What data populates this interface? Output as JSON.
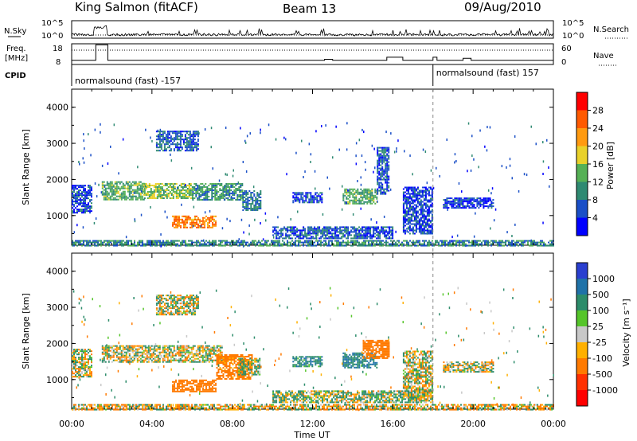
{
  "header": {
    "station": "King Salmon (fitACF)",
    "beam": "Beam 13",
    "date": "09/Aug/2010"
  },
  "strip": {
    "nsky_label": "N.Sky",
    "nsearch_label": "N.Search",
    "freq_label_1": "Freq.",
    "freq_label_2": "[MHz]",
    "nave_label": "Nave",
    "cpid_label": "CPID",
    "noise_left_ticks": [
      "10^5",
      "10^0"
    ],
    "noise_right_ticks": [
      "10^5",
      "10^0"
    ],
    "freq_left_ticks": [
      "18",
      "8"
    ],
    "freq_right_ticks": [
      "60",
      "0"
    ],
    "cpid_segments": [
      {
        "label": "normalsound (fast) -157",
        "start_hour": 0
      },
      {
        "label": "normalsound (fast) 157",
        "start_hour": 18
      }
    ]
  },
  "axes": {
    "xlabel": "Time UT",
    "ylabel": "Slant Range [km]",
    "x_tick_labels": [
      "00:00",
      "04:00",
      "08:00",
      "12:00",
      "16:00",
      "20:00",
      "00:00"
    ],
    "y_tick_labels": [
      "1000",
      "2000",
      "3000",
      "4000"
    ]
  },
  "power_bar": {
    "label": "Power [dB]",
    "tick_labels": [
      "4",
      "8",
      "12",
      "16",
      "20",
      "24",
      "28"
    ],
    "colors": [
      "#0000ff",
      "#1a4fc7",
      "#2f8a72",
      "#55b055",
      "#e9d12a",
      "#ff9a10",
      "#ff5a00",
      "#ff0000"
    ]
  },
  "velocity_bar": {
    "label": "Velocity [m s⁻¹]",
    "tick_labels": [
      "1000",
      "500",
      "100",
      "25",
      "-25",
      "-100",
      "-500",
      "-1000"
    ],
    "colors": [
      "#2a3fd0",
      "#1f72a8",
      "#2c8c6a",
      "#55c52a",
      "#c8c8c8",
      "#ffb000",
      "#ff7a00",
      "#ff3000",
      "#ff0000"
    ]
  },
  "chart_data": [
    {
      "type": "heatmap",
      "name": "power",
      "x_range_hours": [
        0,
        24
      ],
      "ylim": [
        180,
        4500
      ],
      "zlim": [
        0,
        30
      ],
      "regions": [
        {
          "t": [
            1.5,
            3.6
          ],
          "r": [
            1450,
            1950
          ],
          "v": 12
        },
        {
          "t": [
            3.6,
            6.0
          ],
          "r": [
            1500,
            1900
          ],
          "v": 14
        },
        {
          "t": [
            6.0,
            8.5
          ],
          "r": [
            1450,
            1900
          ],
          "v": 10
        },
        {
          "t": [
            8.5,
            9.4
          ],
          "r": [
            1150,
            1700
          ],
          "v": 8
        },
        {
          "t": [
            5.0,
            7.2
          ],
          "r": [
            650,
            1000
          ],
          "v": 22
        },
        {
          "t": [
            4.2,
            6.3
          ],
          "r": [
            2800,
            3350
          ],
          "v": 6
        },
        {
          "t": [
            0.0,
            1.0
          ],
          "r": [
            1100,
            1850
          ],
          "v": 5
        },
        {
          "t": [
            11.0,
            12.5
          ],
          "r": [
            1350,
            1650
          ],
          "v": 5
        },
        {
          "t": [
            13.5,
            15.2
          ],
          "r": [
            1350,
            1750
          ],
          "v": 12
        },
        {
          "t": [
            15.2,
            15.8
          ],
          "r": [
            1600,
            2900
          ],
          "v": 6
        },
        {
          "t": [
            16.5,
            18.0
          ],
          "r": [
            500,
            1800
          ],
          "v": 5
        },
        {
          "t": [
            18.5,
            21.0
          ],
          "r": [
            1200,
            1500
          ],
          "v": 4
        },
        {
          "t": [
            10.0,
            16.0
          ],
          "r": [
            350,
            700
          ],
          "v": 6
        },
        {
          "t": [
            0.0,
            24.0
          ],
          "r": [
            180,
            320
          ],
          "v": 9
        }
      ]
    },
    {
      "type": "heatmap",
      "name": "velocity",
      "x_range_hours": [
        0,
        24
      ],
      "ylim": [
        180,
        4500
      ],
      "zlim": [
        -1000,
        1000
      ],
      "regions": [
        {
          "t": [
            1.5,
            7.5
          ],
          "r": [
            1500,
            1950
          ],
          "v": 0
        },
        {
          "t": [
            5.0,
            7.2
          ],
          "r": [
            650,
            1000
          ],
          "v": -300
        },
        {
          "t": [
            7.2,
            9.0
          ],
          "r": [
            1000,
            1700
          ],
          "v": -250
        },
        {
          "t": [
            8.3,
            9.4
          ],
          "r": [
            1150,
            1600
          ],
          "v": 60
        },
        {
          "t": [
            4.2,
            6.3
          ],
          "r": [
            2800,
            3350
          ],
          "v": 0
        },
        {
          "t": [
            0.0,
            1.0
          ],
          "r": [
            1100,
            1850
          ],
          "v": 0
        },
        {
          "t": [
            11.0,
            12.5
          ],
          "r": [
            1350,
            1650
          ],
          "v": 200
        },
        {
          "t": [
            13.5,
            15.2
          ],
          "r": [
            1350,
            1750
          ],
          "v": 300
        },
        {
          "t": [
            14.5,
            15.8
          ],
          "r": [
            1600,
            2100
          ],
          "v": -300
        },
        {
          "t": [
            16.5,
            18.0
          ],
          "r": [
            500,
            1800
          ],
          "v": 0
        },
        {
          "t": [
            18.5,
            21.0
          ],
          "r": [
            1200,
            1500
          ],
          "v": 0
        },
        {
          "t": [
            10.0,
            18.0
          ],
          "r": [
            350,
            700
          ],
          "v": 60
        },
        {
          "t": [
            0.0,
            24.0
          ],
          "r": [
            180,
            320
          ],
          "v": -50
        }
      ]
    }
  ]
}
